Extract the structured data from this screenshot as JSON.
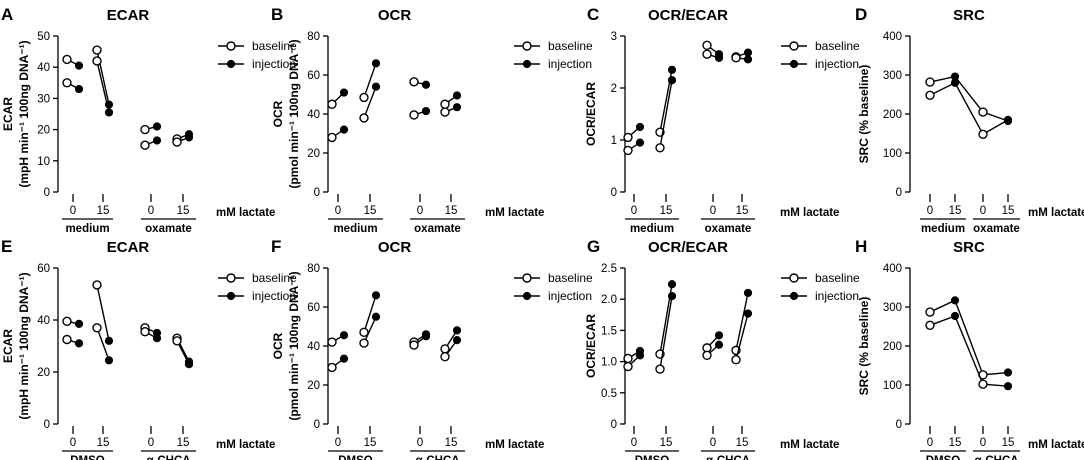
{
  "legend": {
    "baseline": "baseline",
    "injection": "injection"
  },
  "unit_label": "mM lactate",
  "chart_data": [
    {
      "id": "A",
      "letter": "A",
      "type": "line",
      "title": "ECAR",
      "ylabel_main": "ECAR",
      "ylabel_sub": "(mpH min⁻¹ 100ng DNA⁻¹)",
      "ylim": [
        0,
        50
      ],
      "yticks": [
        0,
        10,
        20,
        30,
        40,
        50
      ],
      "categories": [
        "0",
        "15",
        "0",
        "15"
      ],
      "groups": [
        "medium",
        "oxamate"
      ],
      "legend": true,
      "pairs": [
        [
          42.5,
          40.5
        ],
        [
          35,
          33
        ],
        [
          45.5,
          28
        ],
        [
          42,
          25.5
        ],
        [
          20,
          21
        ],
        [
          15,
          16.5
        ],
        [
          17,
          18.5
        ],
        [
          16,
          17.5
        ]
      ]
    },
    {
      "id": "B",
      "letter": "B",
      "type": "line",
      "title": "OCR",
      "ylabel_main": "OCR",
      "ylabel_sub": "(pmol min⁻¹ 100ng DNA⁻¹)",
      "ylim": [
        0,
        80
      ],
      "yticks": [
        0,
        20,
        40,
        60,
        80
      ],
      "categories": [
        "0",
        "15",
        "0",
        "15"
      ],
      "groups": [
        "medium",
        "oxamate"
      ],
      "legend": true,
      "pairs": [
        [
          45,
          51
        ],
        [
          28,
          32
        ],
        [
          48.5,
          66
        ],
        [
          38,
          54
        ],
        [
          56.5,
          55
        ],
        [
          39.5,
          41.5
        ],
        [
          45,
          49.5
        ],
        [
          41,
          43.5
        ]
      ]
    },
    {
      "id": "C",
      "letter": "C",
      "type": "line",
      "title": "OCR/ECAR",
      "ylabel_main": "OCR/ECAR",
      "ylabel_sub": "",
      "ylim": [
        0,
        3
      ],
      "yticks": [
        0,
        1,
        2,
        3
      ],
      "categories": [
        "0",
        "15",
        "0",
        "15"
      ],
      "groups": [
        "medium",
        "oxamate"
      ],
      "legend": true,
      "pairs": [
        [
          1.05,
          1.25
        ],
        [
          0.8,
          0.95
        ],
        [
          1.15,
          2.35
        ],
        [
          0.85,
          2.15
        ],
        [
          2.82,
          2.65
        ],
        [
          2.65,
          2.58
        ],
        [
          2.6,
          2.68
        ],
        [
          2.58,
          2.55
        ]
      ]
    },
    {
      "id": "D",
      "letter": "D",
      "type": "line",
      "title": "SRC",
      "ylabel_main": "SRC (% baseline)",
      "ylabel_sub": "",
      "ylim": [
        0,
        400
      ],
      "yticks": [
        0,
        100,
        200,
        300,
        400
      ],
      "categories": [
        "0",
        "15",
        "0",
        "15"
      ],
      "groups": [
        "medium",
        "oxamate"
      ],
      "legend": false,
      "points": [
        [
          282,
          296,
          205,
          182
        ],
        [
          248,
          280,
          148,
          185
        ]
      ]
    },
    {
      "id": "E",
      "letter": "E",
      "type": "line",
      "title": "ECAR",
      "ylabel_main": "ECAR",
      "ylabel_sub": "(mpH min⁻¹ 100ng DNA⁻¹)",
      "ylim": [
        0,
        60
      ],
      "yticks": [
        0,
        20,
        40,
        60
      ],
      "categories": [
        "0",
        "15",
        "0",
        "15"
      ],
      "groups": [
        "DMSO",
        "α-CHCA"
      ],
      "legend": true,
      "pairs": [
        [
          39.5,
          38.5
        ],
        [
          32.5,
          31
        ],
        [
          53.5,
          32
        ],
        [
          37,
          24.5
        ],
        [
          37,
          35
        ],
        [
          35.5,
          33
        ],
        [
          33,
          24
        ],
        [
          32,
          23
        ]
      ]
    },
    {
      "id": "F",
      "letter": "F",
      "type": "line",
      "title": "OCR",
      "ylabel_main": "OCR",
      "ylabel_sub": "(pmol min⁻¹ 100ng DNA⁻¹)",
      "ylim": [
        0,
        80
      ],
      "yticks": [
        0,
        20,
        40,
        60,
        80
      ],
      "categories": [
        "0",
        "15",
        "0",
        "15"
      ],
      "groups": [
        "DMSO",
        "α-CHCA"
      ],
      "legend": true,
      "pairs": [
        [
          42,
          45.5
        ],
        [
          29,
          33.5
        ],
        [
          47,
          66
        ],
        [
          41.5,
          55
        ],
        [
          42,
          46
        ],
        [
          40.5,
          45
        ],
        [
          38.5,
          48
        ],
        [
          34.5,
          43
        ]
      ]
    },
    {
      "id": "G",
      "letter": "G",
      "type": "line",
      "title": "OCR/ECAR",
      "ylabel_main": "OCR/ECAR",
      "ylabel_sub": "",
      "ylim": [
        0,
        2.5
      ],
      "yticks": [
        0,
        0.5,
        1.0,
        1.5,
        2.0,
        2.5
      ],
      "categories": [
        "0",
        "15",
        "0",
        "15"
      ],
      "groups": [
        "DMSO",
        "α-CHCA"
      ],
      "legend": true,
      "pairs": [
        [
          1.05,
          1.17
        ],
        [
          0.92,
          1.1
        ],
        [
          1.12,
          2.24
        ],
        [
          0.88,
          2.05
        ],
        [
          1.22,
          1.42
        ],
        [
          1.1,
          1.27
        ],
        [
          1.18,
          2.1
        ],
        [
          1.03,
          1.77
        ]
      ]
    },
    {
      "id": "H",
      "letter": "H",
      "type": "line",
      "title": "SRC",
      "ylabel_main": "SRC (% baseline)",
      "ylabel_sub": "",
      "ylim": [
        0,
        400
      ],
      "yticks": [
        0,
        100,
        200,
        300,
        400
      ],
      "categories": [
        "0",
        "15",
        "0",
        "15"
      ],
      "groups": [
        "DMSO",
        "α-CHCA"
      ],
      "legend": false,
      "points": [
        [
          287,
          317,
          126,
          132
        ],
        [
          253,
          277,
          102,
          97
        ]
      ]
    }
  ]
}
